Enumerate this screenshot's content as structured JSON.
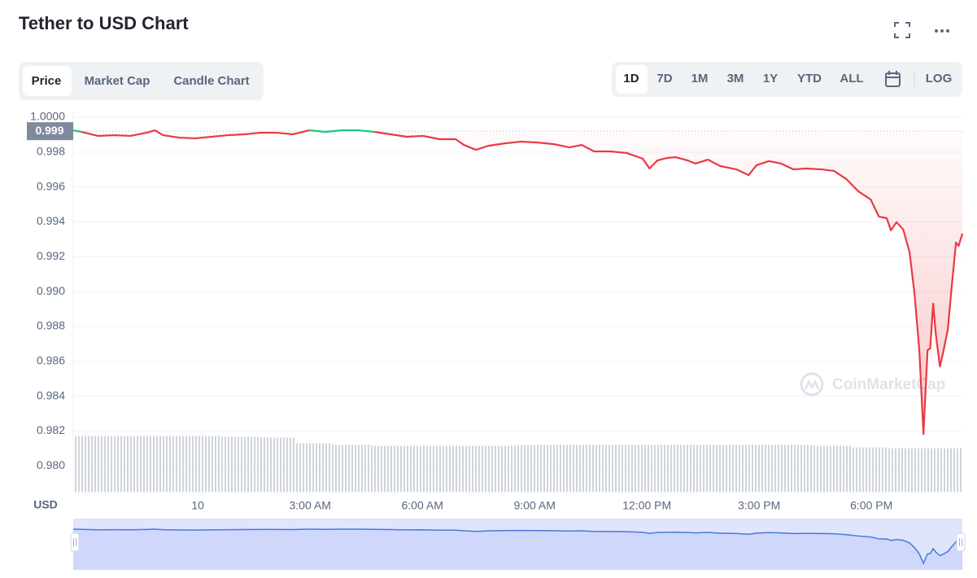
{
  "title": "Tether to USD Chart",
  "tabs": [
    "Price",
    "Market Cap",
    "Candle Chart"
  ],
  "ranges": [
    "1D",
    "7D",
    "1M",
    "3M",
    "1Y",
    "YTD",
    "ALL"
  ],
  "log_button": "LOG",
  "chart_data": {
    "type": "line",
    "y_unit_label": "USD",
    "watermark": "CoinMarketCap",
    "xlim": [
      -3.33,
      20.43
    ],
    "xticks": [
      {
        "value": 0,
        "label": "10"
      },
      {
        "value": 3,
        "label": "3:00 AM"
      },
      {
        "value": 6,
        "label": "6:00 AM"
      },
      {
        "value": 9,
        "label": "9:00 AM"
      },
      {
        "value": 12,
        "label": "12:00 PM"
      },
      {
        "value": 15,
        "label": "3:00 PM"
      },
      {
        "value": 18,
        "label": "6:00 PM"
      }
    ],
    "ylim": [
      0.9785,
      1.0
    ],
    "yticks": [
      {
        "value": 1,
        "label": "1.0000"
      },
      0.998,
      0.996,
      0.994,
      0.992,
      {
        "value": 0.99,
        "label": "0.990"
      },
      0.988,
      0.986,
      0.984,
      0.982,
      {
        "value": 0.98,
        "label": "0.980"
      }
    ],
    "grid": true,
    "reference_line": {
      "value": 0.9992,
      "label": "0.999"
    },
    "colors": {
      "above": "#16c784",
      "below": "#ea3943"
    },
    "navigator_color": "#4a78e0",
    "x": [
      -3.33,
      -3.11,
      -2.67,
      -2.24,
      -1.8,
      -1.37,
      -1.15,
      -0.93,
      -0.5,
      -0.07,
      0.37,
      0.8,
      1.24,
      1.67,
      2.11,
      2.54,
      2.98,
      3.41,
      3.85,
      4.28,
      4.72,
      5.15,
      5.59,
      6.02,
      6.46,
      6.89,
      7.11,
      7.43,
      7.76,
      8.2,
      8.63,
      9.07,
      9.5,
      9.93,
      10.26,
      10.59,
      11.02,
      11.46,
      11.89,
      12.07,
      12.28,
      12.54,
      12.76,
      13.09,
      13.3,
      13.63,
      13.96,
      14.39,
      14.72,
      14.93,
      15.26,
      15.59,
      15.91,
      16.24,
      16.67,
      17.0,
      17.33,
      17.65,
      17.98,
      18.2,
      18.41,
      18.52,
      18.67,
      18.85,
      19.02,
      19.15,
      19.28,
      19.39,
      19.5,
      19.57,
      19.65,
      19.72,
      19.83,
      19.93,
      20.04,
      20.15,
      20.26,
      20.33,
      20.43
    ],
    "values": [
      0.99925,
      0.99916,
      0.99893,
      0.99897,
      0.99893,
      0.99911,
      0.99925,
      0.99897,
      0.99883,
      0.99879,
      0.99888,
      0.99897,
      0.99902,
      0.99911,
      0.99911,
      0.99902,
      0.99925,
      0.99916,
      0.99925,
      0.99925,
      0.99916,
      0.99902,
      0.99888,
      0.99893,
      0.99874,
      0.99874,
      0.99841,
      0.99813,
      0.99836,
      0.9985,
      0.9986,
      0.99855,
      0.99846,
      0.99827,
      0.99841,
      0.99804,
      0.99804,
      0.99795,
      0.99762,
      0.99706,
      0.99752,
      0.99766,
      0.99771,
      0.99752,
      0.99734,
      0.99757,
      0.9972,
      0.99701,
      0.99668,
      0.99725,
      0.99748,
      0.99734,
      0.99701,
      0.99706,
      0.99701,
      0.99692,
      0.99645,
      0.99575,
      0.99528,
      0.9943,
      0.99421,
      0.99351,
      0.99398,
      0.99356,
      0.99225,
      0.98991,
      0.98664,
      0.98183,
      0.98664,
      0.98674,
      0.98931,
      0.98758,
      0.98571,
      0.98664,
      0.98781,
      0.99038,
      0.99281,
      0.99262,
      0.99332
    ],
    "volume": {
      "color": "#c9ced6",
      "values": [
        69,
        69,
        69,
        69,
        68,
        67,
        60,
        58,
        57,
        57,
        57,
        57,
        58,
        58,
        58,
        58,
        58,
        58,
        58,
        58,
        57,
        55,
        54,
        54
      ]
    }
  }
}
